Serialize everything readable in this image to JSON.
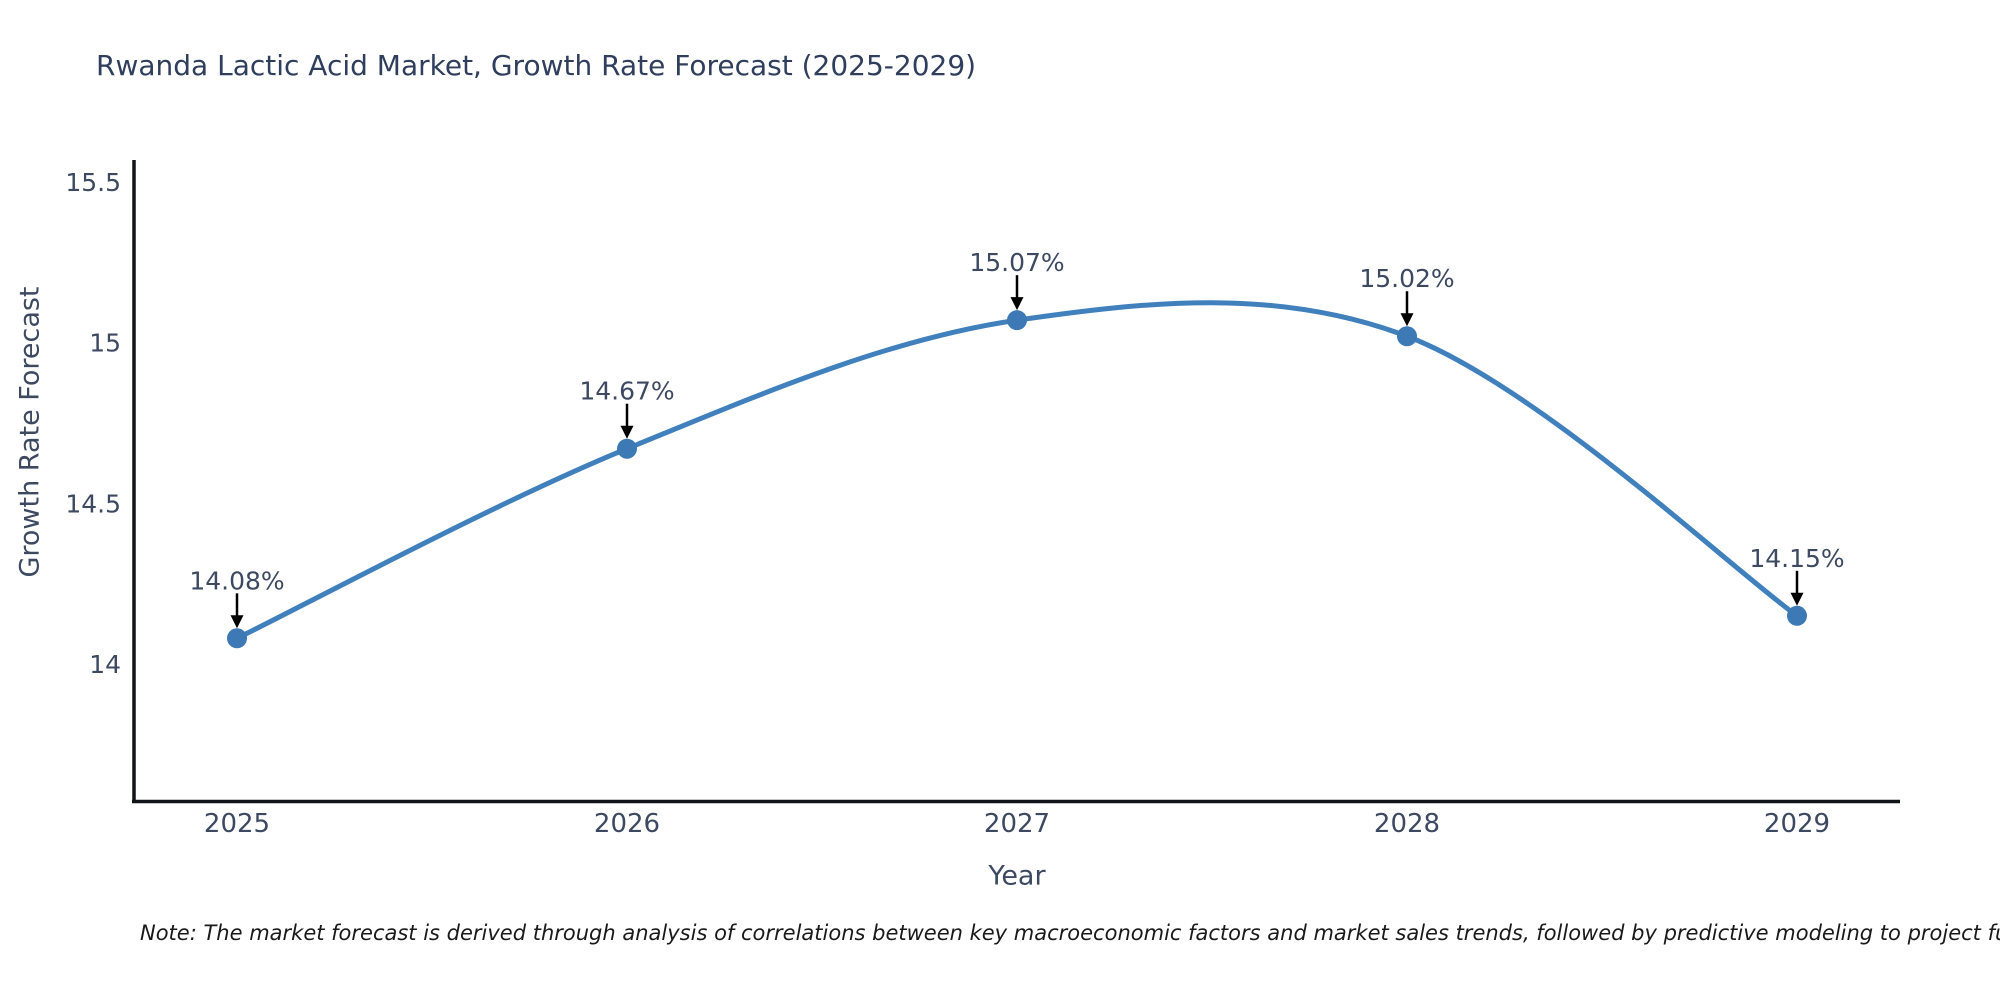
{
  "chart": {
    "title": "Rwanda Lactic Acid Market, Growth Rate Forecast (2025-2029)",
    "xlabel": "Year",
    "ylabel": "Growth Rate Forecast"
  },
  "chart_data": {
    "type": "line",
    "title": "Rwanda Lactic Acid Market, Growth Rate Forecast (2025-2029)",
    "xlabel": "Year",
    "ylabel": "Growth Rate Forecast",
    "x": [
      "2025",
      "2026",
      "2027",
      "2028",
      "2029"
    ],
    "series": [
      {
        "name": "Growth Rate Forecast",
        "values": [
          14.08,
          14.67,
          15.07,
          15.02,
          14.15
        ]
      }
    ],
    "point_labels": [
      "14.08%",
      "14.67%",
      "15.07%",
      "15.02%",
      "14.15%"
    ],
    "ytick_values": [
      14,
      14.5,
      15,
      15.5
    ],
    "ytick_labels": [
      "14",
      "14.5",
      "15",
      "15.5"
    ],
    "ylim": [
      13.57,
      15.57
    ],
    "grid": false,
    "legend": false,
    "line_shape": "spline",
    "markers": true,
    "annotations": "arrow-down-to-point"
  },
  "note": "Note: The market forecast is derived through analysis of correlations between key macroeconomic factors and market sales trends, followed by predictive modeling to project future sal",
  "colors": {
    "line": "#4080bd",
    "marker": "#3c79b5",
    "axis": "#111418",
    "tick_text": "#3c4961",
    "title_text": "#2f3e5c",
    "arrow": "#000000",
    "note_text": "#1a1a1a"
  }
}
